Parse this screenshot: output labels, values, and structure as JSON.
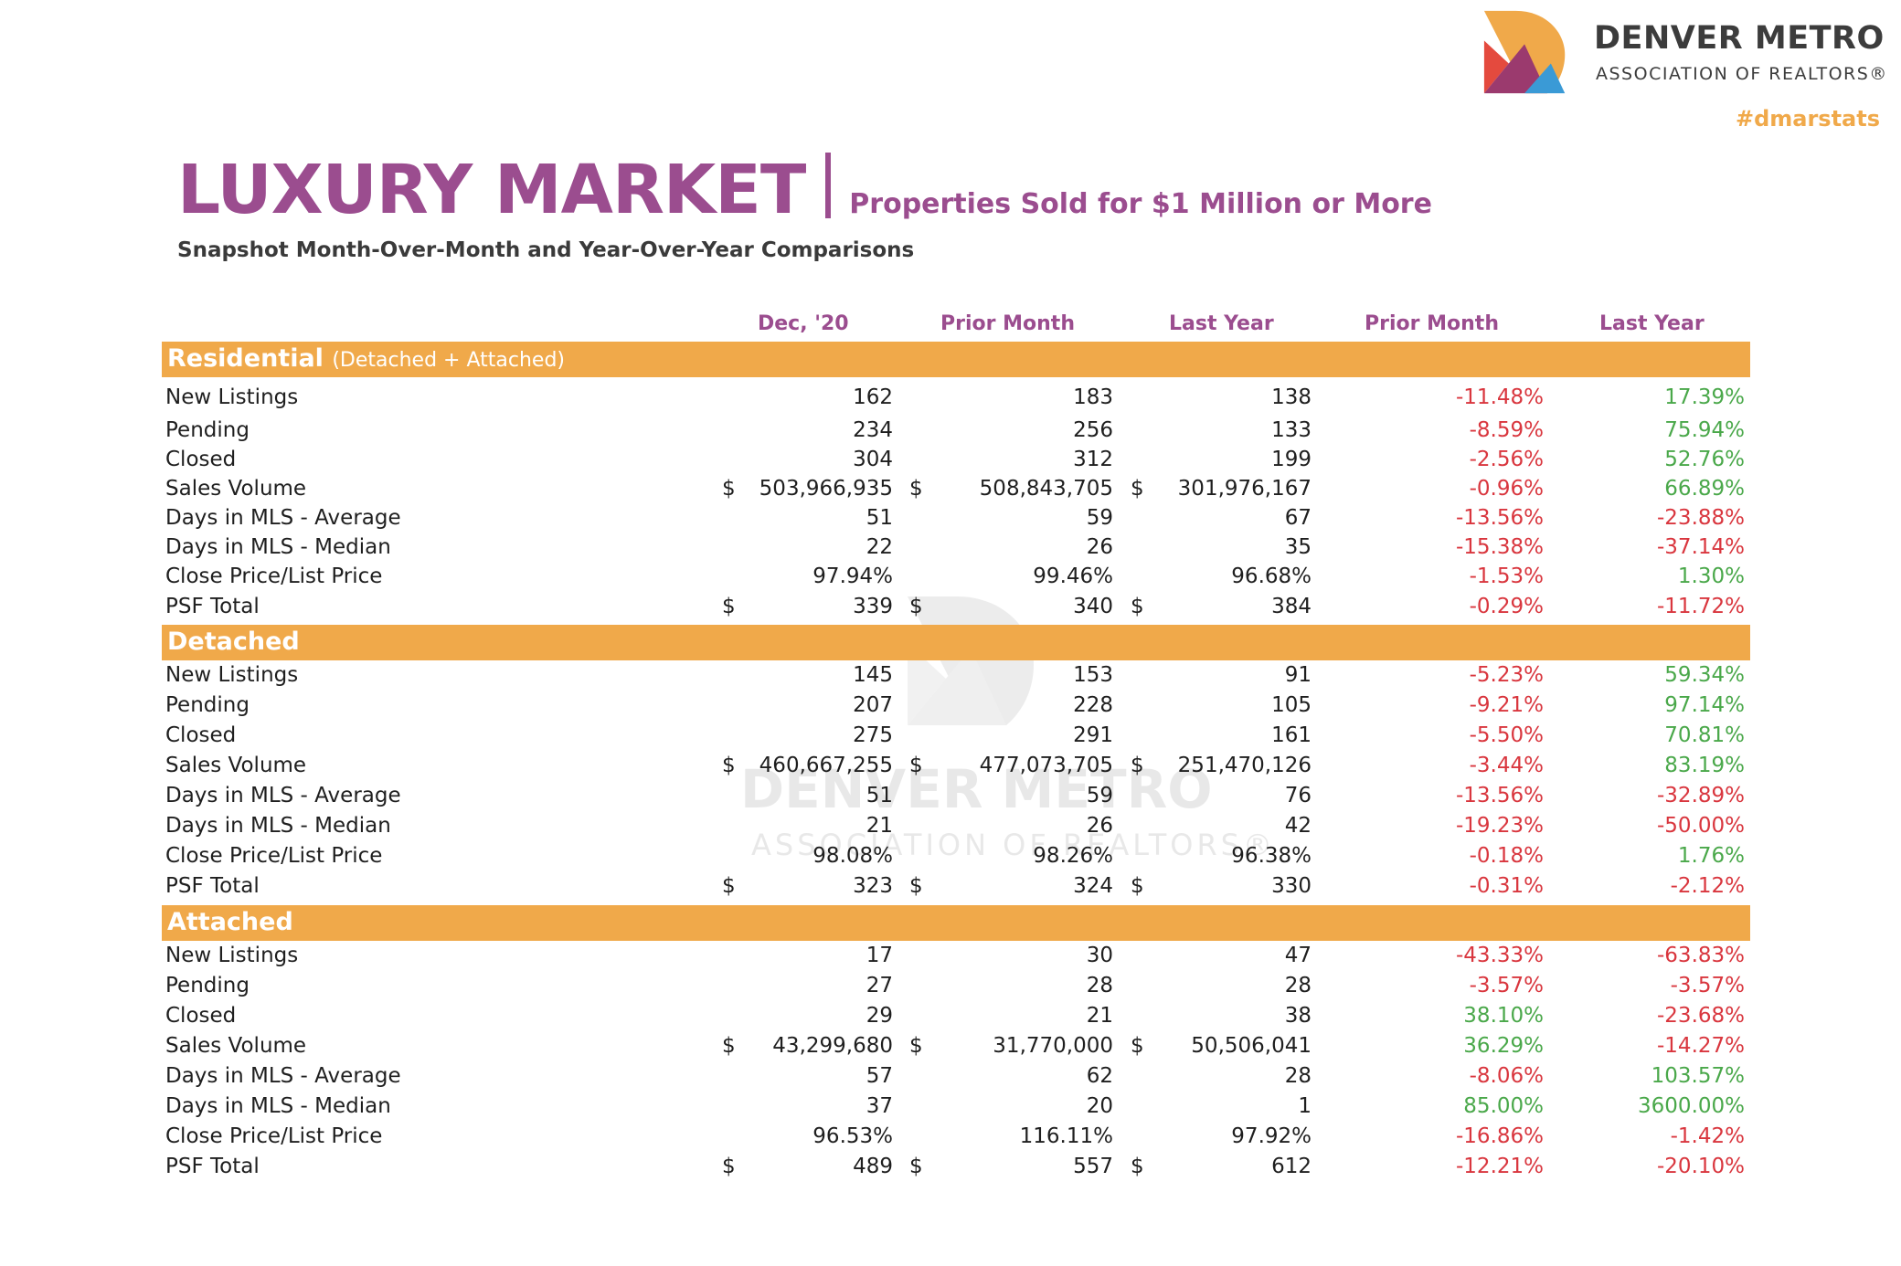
{
  "logo": {
    "name": "DENVER METRO",
    "sub": "ASSOCIATION OF REALTORS®"
  },
  "hashtag": "#dmarstats",
  "title": {
    "main": "LUXURY MARKET",
    "subtitle": "Properties Sold for $1 Million or More",
    "snapshot": "Snapshot Month-Over-Month and Year-Over-Year Comparisons"
  },
  "column_headers": [
    "Dec, '20",
    "Prior Month",
    "Last Year",
    "Prior Month",
    "Last Year"
  ],
  "colors": {
    "accent": "#9b4d8f",
    "band": "#f0a94a",
    "negative": "#d9363e",
    "positive": "#4aa84a"
  },
  "watermark": {
    "name": "DENVER METRO",
    "sub": "ASSOCIATION OF REALTORS®"
  },
  "sections": [
    {
      "title": "Residential",
      "subtitle": "(Detached + Attached)",
      "rows": [
        {
          "label": "New Listings",
          "dollar": false,
          "cur": "162",
          "prior": "183",
          "last": "138",
          "pm": "-11.48%",
          "ly": "17.39%"
        },
        {
          "label": "Pending",
          "dollar": false,
          "cur": "234",
          "prior": "256",
          "last": "133",
          "pm": "-8.59%",
          "ly": "75.94%"
        },
        {
          "label": "Closed",
          "dollar": false,
          "cur": "304",
          "prior": "312",
          "last": "199",
          "pm": "-2.56%",
          "ly": "52.76%"
        },
        {
          "label": "Sales Volume",
          "dollar": true,
          "cur": "503,966,935",
          "prior": "508,843,705",
          "last": "301,976,167",
          "pm": "-0.96%",
          "ly": "66.89%"
        },
        {
          "label": "Days in MLS - Average",
          "dollar": false,
          "cur": "51",
          "prior": "59",
          "last": "67",
          "pm": "-13.56%",
          "ly": "-23.88%"
        },
        {
          "label": "Days in MLS - Median",
          "dollar": false,
          "cur": "22",
          "prior": "26",
          "last": "35",
          "pm": "-15.38%",
          "ly": "-37.14%"
        },
        {
          "label": "Close Price/List Price",
          "dollar": false,
          "cur": "97.94%",
          "prior": "99.46%",
          "last": "96.68%",
          "pm": "-1.53%",
          "ly": "1.30%"
        },
        {
          "label": "PSF Total",
          "dollar": true,
          "cur": "339",
          "prior": "340",
          "last": "384",
          "pm": "-0.29%",
          "ly": "-11.72%"
        }
      ]
    },
    {
      "title": "Detached",
      "subtitle": "",
      "rows": [
        {
          "label": "New Listings",
          "dollar": false,
          "cur": "145",
          "prior": "153",
          "last": "91",
          "pm": "-5.23%",
          "ly": "59.34%"
        },
        {
          "label": "Pending",
          "dollar": false,
          "cur": "207",
          "prior": "228",
          "last": "105",
          "pm": "-9.21%",
          "ly": "97.14%"
        },
        {
          "label": "Closed",
          "dollar": false,
          "cur": "275",
          "prior": "291",
          "last": "161",
          "pm": "-5.50%",
          "ly": "70.81%"
        },
        {
          "label": "Sales Volume",
          "dollar": true,
          "cur": "460,667,255",
          "prior": "477,073,705",
          "last": "251,470,126",
          "pm": "-3.44%",
          "ly": "83.19%"
        },
        {
          "label": "Days in MLS - Average",
          "dollar": false,
          "cur": "51",
          "prior": "59",
          "last": "76",
          "pm": "-13.56%",
          "ly": "-32.89%"
        },
        {
          "label": "Days in MLS - Median",
          "dollar": false,
          "cur": "21",
          "prior": "26",
          "last": "42",
          "pm": "-19.23%",
          "ly": "-50.00%"
        },
        {
          "label": "Close Price/List Price",
          "dollar": false,
          "cur": "98.08%",
          "prior": "98.26%",
          "last": "96.38%",
          "pm": "-0.18%",
          "ly": "1.76%"
        },
        {
          "label": "PSF Total",
          "dollar": true,
          "cur": "323",
          "prior": "324",
          "last": "330",
          "pm": "-0.31%",
          "ly": "-2.12%"
        }
      ]
    },
    {
      "title": "Attached",
      "subtitle": "",
      "rows": [
        {
          "label": "New Listings",
          "dollar": false,
          "cur": "17",
          "prior": "30",
          "last": "47",
          "pm": "-43.33%",
          "ly": "-63.83%"
        },
        {
          "label": "Pending",
          "dollar": false,
          "cur": "27",
          "prior": "28",
          "last": "28",
          "pm": "-3.57%",
          "ly": "-3.57%"
        },
        {
          "label": "Closed",
          "dollar": false,
          "cur": "29",
          "prior": "21",
          "last": "38",
          "pm": "38.10%",
          "ly": "-23.68%"
        },
        {
          "label": "Sales Volume",
          "dollar": true,
          "cur": "43,299,680",
          "prior": "31,770,000",
          "last": "50,506,041",
          "pm": "36.29%",
          "ly": "-14.27%"
        },
        {
          "label": "Days in MLS - Average",
          "dollar": false,
          "cur": "57",
          "prior": "62",
          "last": "28",
          "pm": "-8.06%",
          "ly": "103.57%"
        },
        {
          "label": "Days in MLS - Median",
          "dollar": false,
          "cur": "37",
          "prior": "20",
          "last": "1",
          "pm": "85.00%",
          "ly": "3600.00%"
        },
        {
          "label": "Close Price/List Price",
          "dollar": false,
          "cur": "96.53%",
          "prior": "116.11%",
          "last": "97.92%",
          "pm": "-16.86%",
          "ly": "-1.42%"
        },
        {
          "label": "PSF Total",
          "dollar": true,
          "cur": "489",
          "prior": "557",
          "last": "612",
          "pm": "-12.21%",
          "ly": "-20.10%"
        }
      ]
    }
  ]
}
